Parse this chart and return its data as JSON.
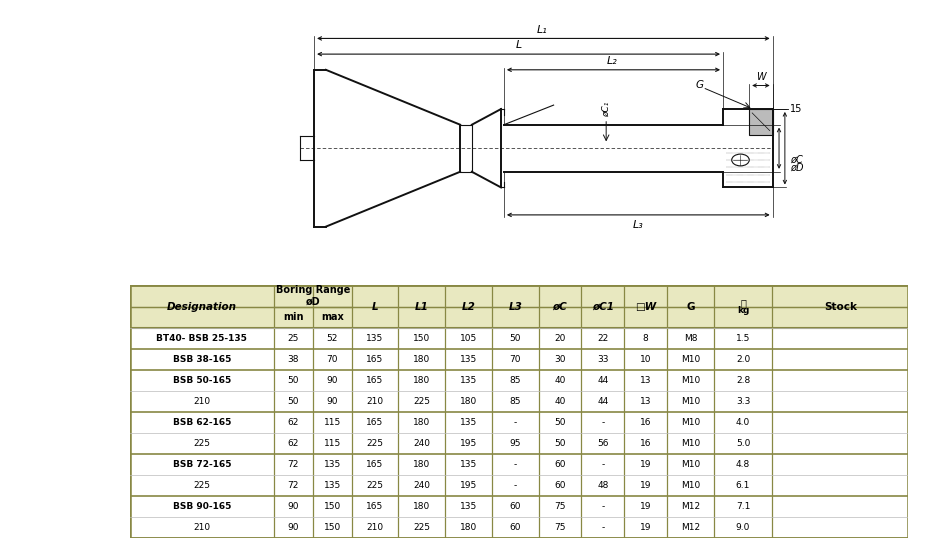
{
  "bg_color": "#ffffff",
  "table_header_color": "#e8e8c0",
  "table_border_color": "#888844",
  "table_line_color": "#bbbbbb",
  "rows": [
    [
      "BT40- BSB 25-135",
      "25",
      "52",
      "135",
      "150",
      "105",
      "50",
      "20",
      "22",
      "8",
      "M8",
      "1.5",
      ""
    ],
    [
      "BSB 38-165",
      "38",
      "70",
      "165",
      "180",
      "135",
      "70",
      "30",
      "33",
      "10",
      "M10",
      "2.0",
      ""
    ],
    [
      "BSB 50-165",
      "50",
      "90",
      "165",
      "180",
      "135",
      "85",
      "40",
      "44",
      "13",
      "M10",
      "2.8",
      ""
    ],
    [
      "210",
      "50",
      "90",
      "210",
      "225",
      "180",
      "85",
      "40",
      "44",
      "13",
      "M10",
      "3.3",
      ""
    ],
    [
      "BSB 62-165",
      "62",
      "115",
      "165",
      "180",
      "135",
      "-",
      "50",
      "-",
      "16",
      "M10",
      "4.0",
      ""
    ],
    [
      "225",
      "62",
      "115",
      "225",
      "240",
      "195",
      "95",
      "50",
      "56",
      "16",
      "M10",
      "5.0",
      ""
    ],
    [
      "BSB 72-165",
      "72",
      "135",
      "165",
      "180",
      "135",
      "-",
      "60",
      "-",
      "19",
      "M10",
      "4.8",
      ""
    ],
    [
      "225",
      "72",
      "135",
      "225",
      "240",
      "195",
      "-",
      "60",
      "48",
      "19",
      "M10",
      "6.1",
      ""
    ],
    [
      "BSB 90-165",
      "90",
      "150",
      "165",
      "180",
      "135",
      "60",
      "75",
      "-",
      "19",
      "M12",
      "7.1",
      ""
    ],
    [
      "210",
      "90",
      "150",
      "210",
      "225",
      "180",
      "60",
      "75",
      "-",
      "19",
      "M12",
      "9.0",
      ""
    ]
  ],
  "group_sep_before": [
    1,
    2,
    4,
    6,
    8
  ],
  "bold_designations": [
    "BT40- BSB 25-135",
    "BSB 38-165",
    "BSB 50-165",
    "BSB 62-165",
    "BSB 72-165",
    "BSB 90-165"
  ]
}
